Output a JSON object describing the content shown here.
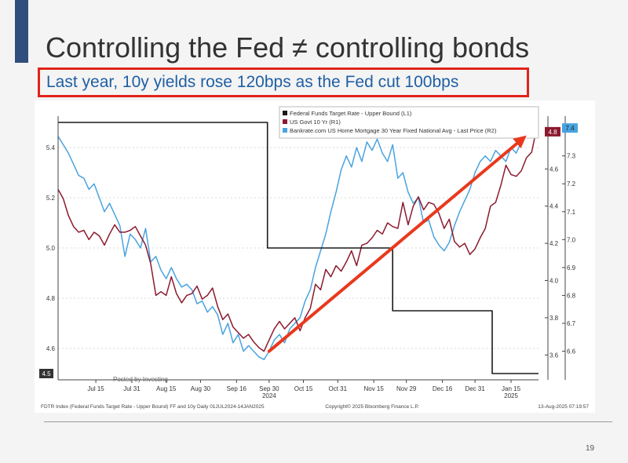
{
  "slide": {
    "title": "Controlling the Fed ≠ controlling bonds",
    "subtitle": "Last year, 10y yields rose 120bps as the Fed cut 100bps",
    "page_number": "19"
  },
  "colors": {
    "accent_bar": "#2f4e7e",
    "highlight_border": "#e2231a",
    "subtitle_text": "#1f5fa3",
    "fed_funds": "#1a1a1a",
    "us_10y": "#8b1a2e",
    "mortgage": "#4aa3df",
    "arrow": "#e8391d"
  },
  "chart_data": {
    "type": "line",
    "watermark": "Posted by Investinq",
    "x_ticks": [
      "Jul 15",
      "Jul 31",
      "Aug 15",
      "Aug 30",
      "Sep 16",
      "Sep 30",
      "Oct 15",
      "Oct 31",
      "Nov 15",
      "Nov 29",
      "Dec 16",
      "Dec 31",
      "Jan 15"
    ],
    "x_tick_sublabels": [
      {
        "under": "Sep 30",
        "text": "2024"
      },
      {
        "under": "Jan 15",
        "text": "2025"
      }
    ],
    "x_range": [
      0,
      28
    ],
    "left_axis": {
      "ticks": [
        "5.4",
        "5.2",
        "5.0",
        "4.8",
        "4.6"
      ],
      "range": [
        4.5,
        5.5
      ],
      "current_value_label": "4.5"
    },
    "right_axis_1": {
      "ticks": [
        "4.6",
        "4.4",
        "4.2",
        "4.0",
        "3.8",
        "3.6"
      ],
      "range": [
        3.5,
        4.85
      ],
      "current_value_label": "4.8"
    },
    "right_axis_2": {
      "ticks": [
        "7.3",
        "7.2",
        "7.1",
        "7.0",
        "6.9",
        "6.8",
        "6.7",
        "6.6"
      ],
      "range": [
        6.52,
        7.42
      ],
      "current_value_label": "7.4"
    },
    "legend_position": "top-right",
    "series": [
      {
        "name": "Federal Funds Target Rate - Upper Bound (L1)",
        "axis": "left",
        "x": [
          0,
          12.2,
          12.2,
          19.5,
          19.5,
          25.3,
          25.3,
          28
        ],
        "values": [
          5.5,
          5.5,
          5.0,
          5.0,
          4.75,
          4.75,
          4.5,
          4.5
        ]
      },
      {
        "name": "US Govt 10 Yr (R1)",
        "axis": "right1",
        "x": [
          0,
          0.3,
          0.6,
          0.9,
          1.2,
          1.5,
          1.8,
          2.1,
          2.4,
          2.7,
          3,
          3.3,
          3.6,
          3.9,
          4.2,
          4.5,
          4.8,
          5.1,
          5.4,
          5.7,
          6,
          6.3,
          6.6,
          6.9,
          7.2,
          7.5,
          7.8,
          8.1,
          8.4,
          8.7,
          9,
          9.3,
          9.6,
          9.9,
          10.2,
          10.5,
          10.8,
          11.1,
          11.4,
          11.7,
          12,
          12.3,
          12.6,
          12.9,
          13.2,
          13.5,
          13.8,
          14.1,
          14.4,
          14.7,
          15,
          15.3,
          15.6,
          15.9,
          16.2,
          16.5,
          16.8,
          17.1,
          17.4,
          17.7,
          18,
          18.3,
          18.6,
          18.9,
          19.2,
          19.5,
          19.8,
          20.1,
          20.4,
          20.7,
          21,
          21.3,
          21.6,
          21.9,
          22.2,
          22.5,
          22.8,
          23.1,
          23.4,
          23.7,
          24,
          24.3,
          24.6,
          24.9,
          25.2,
          25.5,
          25.8,
          26.1,
          26.4,
          26.7,
          27,
          27.3,
          27.6,
          27.85
        ],
        "values": [
          4.49,
          4.44,
          4.35,
          4.29,
          4.26,
          4.27,
          4.22,
          4.26,
          4.24,
          4.19,
          4.25,
          4.3,
          4.26,
          4.26,
          4.27,
          4.29,
          4.24,
          4.19,
          4.09,
          3.92,
          3.94,
          3.92,
          4.02,
          3.93,
          3.88,
          3.92,
          3.93,
          3.97,
          3.9,
          3.92,
          3.96,
          3.86,
          3.79,
          3.82,
          3.75,
          3.72,
          3.69,
          3.71,
          3.67,
          3.64,
          3.62,
          3.68,
          3.74,
          3.78,
          3.74,
          3.77,
          3.8,
          3.73,
          3.8,
          3.85,
          3.98,
          3.95,
          4.06,
          4.02,
          4.08,
          4.05,
          4.1,
          4.16,
          4.08,
          4.19,
          4.2,
          4.23,
          4.27,
          4.25,
          4.31,
          4.29,
          4.28,
          4.42,
          4.3,
          4.4,
          4.45,
          4.38,
          4.42,
          4.41,
          4.36,
          4.28,
          4.33,
          4.21,
          4.18,
          4.2,
          4.14,
          4.17,
          4.23,
          4.28,
          4.4,
          4.42,
          4.51,
          4.62,
          4.57,
          4.56,
          4.59,
          4.66,
          4.69,
          4.8
        ]
      },
      {
        "name": "Bankrate.com US Home Mortgage 30 Year Fixed National Avg - Last Price (R2)",
        "axis": "right2",
        "x": [
          0,
          0.3,
          0.6,
          0.9,
          1.2,
          1.5,
          1.8,
          2.1,
          2.4,
          2.7,
          3,
          3.3,
          3.6,
          3.9,
          4.2,
          4.5,
          4.8,
          5.1,
          5.4,
          5.7,
          6,
          6.3,
          6.6,
          6.9,
          7.2,
          7.5,
          7.8,
          8.1,
          8.4,
          8.7,
          9,
          9.3,
          9.6,
          9.9,
          10.2,
          10.5,
          10.8,
          11.1,
          11.4,
          11.7,
          12,
          12.3,
          12.6,
          12.9,
          13.2,
          13.5,
          13.8,
          14.1,
          14.4,
          14.7,
          15,
          15.3,
          15.6,
          15.9,
          16.2,
          16.5,
          16.8,
          17.1,
          17.4,
          17.7,
          18,
          18.3,
          18.6,
          18.9,
          19.2,
          19.5,
          19.8,
          20.1,
          20.4,
          20.7,
          21,
          21.3,
          21.6,
          21.9,
          22.2,
          22.5,
          22.8,
          23.1,
          23.4,
          23.7,
          24,
          24.3,
          24.6,
          24.9,
          25.2,
          25.5,
          25.8,
          26.1,
          26.4,
          26.7,
          27,
          27.3,
          27.6,
          27.85
        ],
        "values": [
          7.37,
          7.34,
          7.31,
          7.27,
          7.23,
          7.22,
          7.18,
          7.2,
          7.15,
          7.1,
          7.13,
          7.09,
          7.05,
          6.94,
          7.02,
          7.0,
          6.97,
          7.04,
          6.92,
          6.94,
          6.89,
          6.86,
          6.9,
          6.86,
          6.83,
          6.84,
          6.82,
          6.77,
          6.78,
          6.74,
          6.76,
          6.73,
          6.66,
          6.7,
          6.63,
          6.66,
          6.6,
          6.62,
          6.6,
          6.58,
          6.57,
          6.6,
          6.64,
          6.66,
          6.63,
          6.68,
          6.7,
          6.72,
          6.78,
          6.82,
          6.9,
          6.96,
          7.02,
          7.1,
          7.17,
          7.25,
          7.3,
          7.26,
          7.33,
          7.28,
          7.35,
          7.32,
          7.36,
          7.31,
          7.28,
          7.34,
          7.22,
          7.24,
          7.17,
          7.13,
          7.15,
          7.06,
          7.07,
          7.01,
          6.98,
          6.96,
          6.99,
          7.05,
          7.1,
          7.14,
          7.18,
          7.24,
          7.28,
          7.3,
          7.28,
          7.32,
          7.3,
          7.28,
          7.33,
          7.31,
          7.35,
          7.37,
          7.4,
          7.41
        ]
      }
    ],
    "arrow": {
      "from": {
        "x": 12.3,
        "axis_right1": 3.62
      },
      "to": {
        "x": 27.3,
        "axis_right1": 4.78
      }
    },
    "source_note_left": "FDTR Index (Federal Funds Target Rate - Upper Bound) FF and 10y  Daily 01JUL2024-14JAN2025",
    "source_note_center": "Copyright© 2025 Bloomberg Finance L.P.",
    "source_note_right": "13-Aug-2025 07:19:57"
  }
}
